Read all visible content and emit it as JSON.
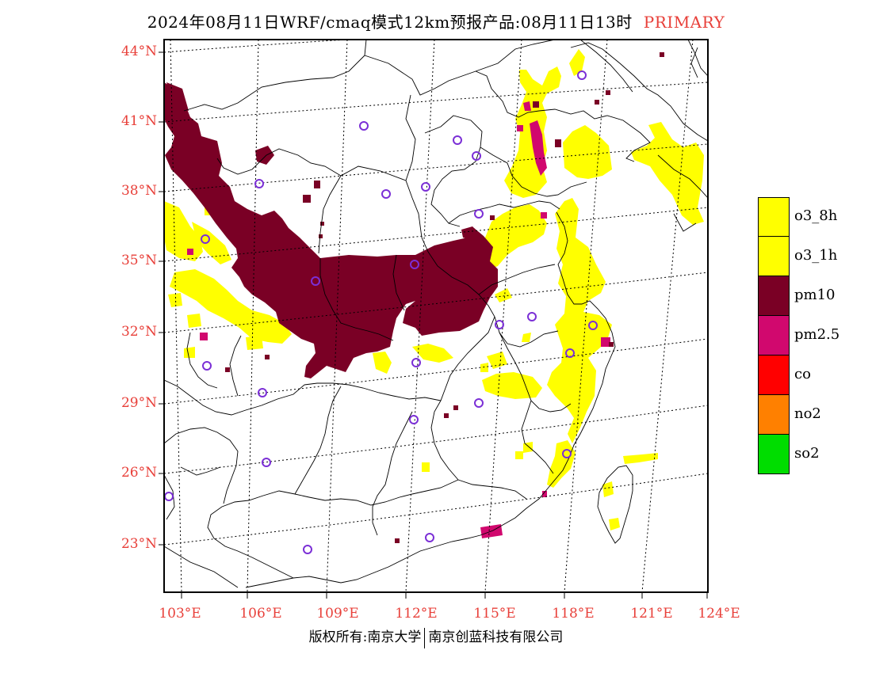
{
  "title": {
    "main": "2024年08月11日WRF/cmaq模式12km预报产品:08月11日13时",
    "tag": "PRIMARY"
  },
  "axes": {
    "lat_labels": [
      "44°N",
      "41°N",
      "38°N",
      "35°N",
      "32°N",
      "29°N",
      "26°N",
      "23°N"
    ],
    "lon_labels": [
      "103°E",
      "106°E",
      "109°E",
      "112°E",
      "115°E",
      "118°E",
      "121°E",
      "124°E"
    ]
  },
  "legend": [
    {
      "label": "o3_8h",
      "color": "#ffff00"
    },
    {
      "label": "o3_1h",
      "color": "#ffff00"
    },
    {
      "label": "pm10",
      "color": "#7a0025"
    },
    {
      "label": "pm2.5",
      "color": "#d1086e"
    },
    {
      "label": "co",
      "color": "#ff0000"
    },
    {
      "label": "no2",
      "color": "#ff8000"
    },
    {
      "label": "so2",
      "color": "#00dd00"
    }
  ],
  "footer": {
    "left": "版权所有:南京大学",
    "right": "南京创蓝科技有限公司"
  },
  "colors": {
    "label_red": "#e8403a",
    "station_marker": "#7b2fd6",
    "o3": "#ffff00",
    "pm10": "#7a0025",
    "pm25": "#d1086e"
  }
}
